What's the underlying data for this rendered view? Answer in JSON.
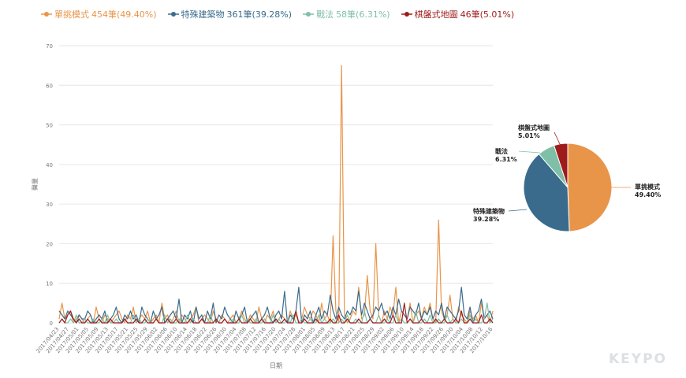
{
  "legend": [
    {
      "label": "單挑模式",
      "count": "454筆(49.40%)",
      "color": "#e8954a"
    },
    {
      "label": "特殊建築物",
      "count": "361筆(39.28%)",
      "color": "#3a6b8c"
    },
    {
      "label": "戰法",
      "count": "58筆(6.31%)",
      "color": "#80bfa7"
    },
    {
      "label": "棋盤式地圖",
      "count": "46筆(5.01%)",
      "color": "#9e1b1b"
    }
  ],
  "logo": "KEYPO",
  "chart_data": [
    {
      "type": "line",
      "xlabel": "日期",
      "ylabel": "聲量",
      "ylim": [
        0,
        70
      ],
      "yticks": [
        0,
        10,
        20,
        30,
        40,
        50,
        60,
        70
      ],
      "xtick_labels": [
        "2017/04/23",
        "2017/04/27",
        "2017/05/01",
        "2017/05/05",
        "2017/05/09",
        "2017/05/13",
        "2017/05/17",
        "2017/05/21",
        "2017/05/25",
        "2017/05/29",
        "2017/06/02",
        "2017/06/06",
        "2017/06/10",
        "2017/06/14",
        "2017/06/18",
        "2017/06/22",
        "2017/06/26",
        "2017/06/30",
        "2017/07/04",
        "2017/07/08",
        "2017/07/12",
        "2017/07/16",
        "2017/07/20",
        "2017/07/24",
        "2017/07/28",
        "2017/08/01",
        "2017/08/05",
        "2017/08/09",
        "2017/08/13",
        "2017/08/17",
        "2017/08/21",
        "2017/08/25",
        "2017/08/29",
        "2017/09/02",
        "2017/09/06",
        "2017/09/10",
        "2017/09/14",
        "2017/09/18",
        "2017/09/22",
        "2017/09/26",
        "2017/09/30",
        "2017/10/04",
        "2017/10/08",
        "2017/10/12",
        "2017/10/16"
      ],
      "series": [
        {
          "name": "單挑模式",
          "color": "#e8954a",
          "values": [
            1,
            5,
            1,
            2,
            3,
            0,
            1,
            2,
            1,
            0,
            1,
            2,
            0,
            4,
            1,
            0,
            2,
            1,
            0,
            1,
            2,
            3,
            1,
            0,
            2,
            1,
            4,
            0,
            1,
            2,
            1,
            3,
            0,
            1,
            2,
            0,
            5,
            1,
            2,
            0,
            1,
            3,
            0,
            2,
            1,
            0,
            1,
            2,
            4,
            0,
            1,
            2,
            1,
            0,
            3,
            1,
            0,
            2,
            1,
            0,
            1,
            2,
            0,
            1,
            3,
            1,
            0,
            2,
            1,
            0,
            4,
            1,
            0,
            2,
            1,
            3,
            0,
            1,
            2,
            1,
            0,
            3,
            1,
            2,
            0,
            1,
            4,
            2,
            1,
            3,
            2,
            0,
            5,
            1,
            2,
            0,
            22,
            3,
            0,
            65,
            2,
            0,
            1,
            3,
            2,
            9,
            1,
            2,
            12,
            3,
            1,
            20,
            2,
            0,
            3,
            1,
            4,
            2,
            9,
            0,
            3,
            2,
            1,
            5,
            0,
            2,
            3,
            1,
            4,
            2,
            5,
            1,
            0,
            26,
            3,
            1,
            2,
            7,
            1,
            0,
            4,
            2,
            1,
            0,
            3,
            1,
            2,
            0,
            5,
            1,
            2,
            0,
            3
          ]
        },
        {
          "name": "特殊建築物",
          "color": "#3a6b8c",
          "values": [
            3,
            2,
            1,
            3,
            2,
            1,
            0,
            2,
            1,
            1,
            3,
            2,
            0,
            1,
            2,
            1,
            3,
            0,
            1,
            2,
            4,
            1,
            0,
            2,
            1,
            3,
            1,
            2,
            0,
            4,
            2,
            1,
            0,
            3,
            1,
            2,
            4,
            0,
            1,
            2,
            3,
            1,
            6,
            0,
            2,
            1,
            3,
            0,
            4,
            1,
            2,
            0,
            3,
            1,
            5,
            0,
            2,
            1,
            4,
            2,
            1,
            0,
            3,
            1,
            2,
            4,
            0,
            1,
            2,
            3,
            0,
            1,
            2,
            4,
            1,
            0,
            2,
            3,
            1,
            8,
            0,
            2,
            1,
            3,
            9,
            0,
            2,
            1,
            3,
            0,
            2,
            4,
            1,
            3,
            2,
            7,
            3,
            1,
            4,
            2,
            1,
            3,
            2,
            4,
            3,
            8,
            2,
            5,
            3,
            1,
            2,
            4,
            3,
            5,
            2,
            3,
            1,
            4,
            2,
            6,
            3,
            2,
            1,
            4,
            3,
            2,
            5,
            1,
            3,
            2,
            4,
            1,
            3,
            2,
            5,
            1,
            4,
            3,
            2,
            1,
            3,
            9,
            2,
            1,
            4,
            0,
            2,
            3,
            6,
            1,
            2,
            3,
            1
          ]
        },
        {
          "name": "戰法",
          "color": "#80bfa7",
          "values": [
            0,
            1,
            0,
            0,
            1,
            0,
            2,
            0,
            0,
            1,
            0,
            0,
            1,
            0,
            0,
            1,
            0,
            2,
            0,
            0,
            1,
            0,
            0,
            1,
            0,
            0,
            2,
            0,
            1,
            0,
            0,
            1,
            0,
            0,
            1,
            0,
            0,
            2,
            0,
            1,
            0,
            0,
            1,
            0,
            0,
            2,
            0,
            1,
            0,
            0,
            1,
            0,
            0,
            2,
            0,
            1,
            0,
            0,
            1,
            0,
            0,
            1,
            0,
            0,
            2,
            0,
            1,
            0,
            0,
            1,
            0,
            0,
            1,
            0,
            0,
            2,
            0,
            1,
            0,
            0,
            1,
            0,
            2,
            0,
            0,
            1,
            0,
            0,
            1,
            0,
            0,
            2,
            0,
            1,
            0,
            0,
            1,
            0,
            0,
            1,
            0,
            2,
            0,
            0,
            1,
            0,
            0,
            3,
            0,
            1,
            0,
            0,
            2,
            0,
            0,
            1,
            0,
            0,
            2,
            0,
            1,
            0,
            0,
            1,
            0,
            3,
            0,
            0,
            1,
            0,
            2,
            0,
            0,
            1,
            0,
            0,
            2,
            0,
            1,
            0,
            0,
            1,
            0,
            0,
            2,
            0,
            1,
            0,
            0,
            1,
            5,
            0,
            1
          ]
        },
        {
          "name": "棋盤式地圖",
          "color": "#9e1b1b",
          "values": [
            0,
            1,
            0,
            2,
            3,
            1,
            0,
            1,
            0,
            0,
            1,
            0,
            0,
            0,
            1,
            0,
            0,
            0,
            1,
            0,
            0,
            0,
            0,
            1,
            0,
            0,
            0,
            1,
            0,
            0,
            1,
            0,
            0,
            0,
            1,
            0,
            0,
            0,
            1,
            0,
            0,
            1,
            0,
            0,
            0,
            0,
            1,
            0,
            0,
            0,
            1,
            0,
            0,
            0,
            0,
            1,
            0,
            0,
            1,
            0,
            0,
            0,
            0,
            1,
            0,
            0,
            0,
            1,
            0,
            0,
            0,
            1,
            0,
            0,
            0,
            0,
            1,
            0,
            0,
            1,
            0,
            0,
            0,
            3,
            0,
            0,
            1,
            0,
            0,
            0,
            1,
            0,
            0,
            0,
            0,
            1,
            0,
            0,
            2,
            0,
            0,
            1,
            0,
            0,
            0,
            1,
            0,
            0,
            0,
            1,
            0,
            0,
            0,
            0,
            1,
            0,
            0,
            2,
            0,
            0,
            0,
            5,
            0,
            1,
            0,
            0,
            0,
            1,
            0,
            0,
            0,
            0,
            1,
            0,
            0,
            1,
            0,
            0,
            0,
            1,
            0,
            3,
            0,
            0,
            1,
            0,
            0,
            0,
            2,
            0,
            0,
            1,
            0
          ]
        }
      ]
    },
    {
      "type": "pie",
      "slices": [
        {
          "label": "單挑模式",
          "pct": "49.40%",
          "value": 49.4,
          "color": "#e8954a"
        },
        {
          "label": "特殊建築物",
          "pct": "39.28%",
          "value": 39.28,
          "color": "#3a6b8c"
        },
        {
          "label": "戰法",
          "pct": "6.31%",
          "value": 6.31,
          "color": "#80bfa7"
        },
        {
          "label": "棋盤式地圖",
          "pct": "5.01%",
          "value": 5.01,
          "color": "#9e1b1b"
        }
      ]
    }
  ]
}
